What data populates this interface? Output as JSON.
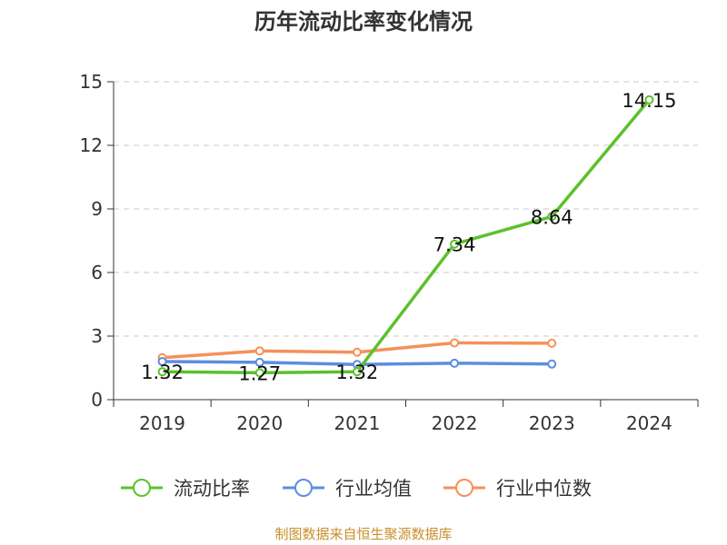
{
  "chart_data": {
    "type": "line",
    "title": "历年流动比率变化情况",
    "categories": [
      "2019",
      "2020",
      "2021",
      "2022",
      "2023",
      "2024"
    ],
    "y_ticks": [
      "0",
      "3",
      "6",
      "9",
      "12",
      "15"
    ],
    "ylim": [
      0,
      15
    ],
    "grid": true,
    "legend_position": "bottom",
    "series": [
      {
        "name": "流动比率",
        "color": "#5cc12a",
        "values": [
          1.32,
          1.27,
          1.32,
          7.34,
          8.64,
          14.15
        ],
        "labels": [
          "1.32",
          "1.27",
          "1.32",
          "7.34",
          "8.64",
          "14.15"
        ]
      },
      {
        "name": "行业均值",
        "color": "#5b8ee0",
        "values": [
          1.8,
          1.76,
          1.66,
          1.72,
          1.68,
          null
        ]
      },
      {
        "name": "行业中位数",
        "color": "#f4915a",
        "values": [
          1.98,
          2.3,
          2.24,
          2.68,
          2.66,
          null
        ]
      }
    ]
  },
  "footer": "制图数据来自恒生聚源数据库"
}
